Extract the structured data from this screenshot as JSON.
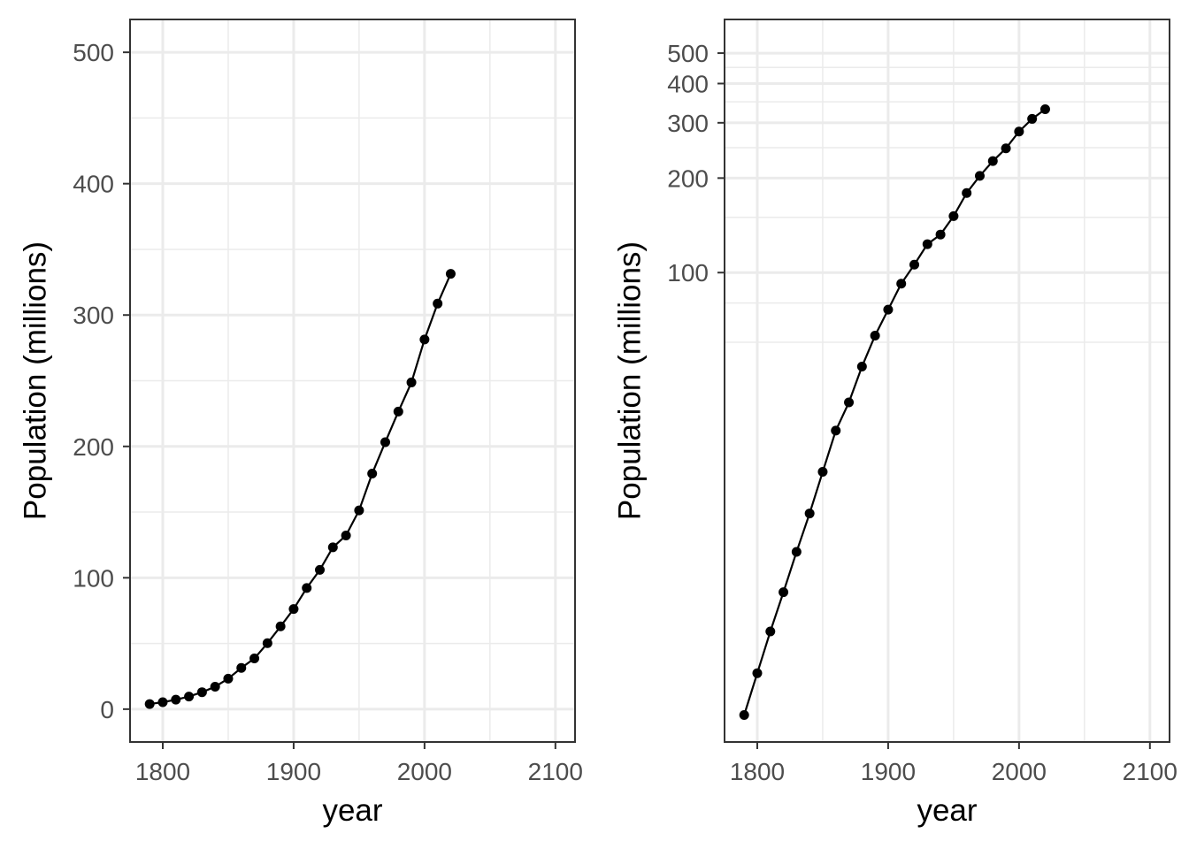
{
  "chart_data": [
    {
      "type": "line",
      "panel": "linear",
      "xlabel": "year",
      "ylabel": "Population (millions)",
      "xlim": [
        1775,
        2115
      ],
      "ylim": [
        -25,
        525
      ],
      "y_scale": "linear",
      "x_ticks": [
        1800,
        1900,
        2000,
        2100
      ],
      "y_ticks": [
        0,
        100,
        200,
        300,
        400,
        500
      ],
      "grid": true,
      "series": [
        {
          "x": [
            1790,
            1800,
            1810,
            1820,
            1830,
            1840,
            1850,
            1860,
            1870,
            1880,
            1890,
            1900,
            1910,
            1920,
            1930,
            1940,
            1950,
            1960,
            1970,
            1980,
            1990,
            2000,
            2010,
            2020
          ],
          "values": [
            3.9,
            5.3,
            7.2,
            9.6,
            12.9,
            17.1,
            23.2,
            31.4,
            38.6,
            50.2,
            63.0,
            76.2,
            92.2,
            106.0,
            123.2,
            132.2,
            151.3,
            179.3,
            203.2,
            226.5,
            248.7,
            281.4,
            308.7,
            331.4
          ]
        }
      ]
    },
    {
      "type": "line",
      "panel": "log",
      "xlabel": "year",
      "ylabel": "Population (millions)",
      "xlim": [
        1775,
        2115
      ],
      "ylim": [
        3.2,
        640
      ],
      "y_scale": "log",
      "x_ticks": [
        1800,
        1900,
        2000,
        2100
      ],
      "y_ticks": [
        100,
        200,
        300,
        400,
        500
      ],
      "grid": true,
      "series": [
        {
          "x": [
            1790,
            1800,
            1810,
            1820,
            1830,
            1840,
            1850,
            1860,
            1870,
            1880,
            1890,
            1900,
            1910,
            1920,
            1930,
            1940,
            1950,
            1960,
            1970,
            1980,
            1990,
            2000,
            2010,
            2020
          ],
          "values": [
            3.9,
            5.3,
            7.2,
            9.6,
            12.9,
            17.1,
            23.2,
            31.4,
            38.6,
            50.2,
            63.0,
            76.2,
            92.2,
            106.0,
            123.2,
            132.2,
            151.3,
            179.3,
            203.2,
            226.5,
            248.7,
            281.4,
            308.7,
            331.4
          ]
        }
      ]
    }
  ]
}
